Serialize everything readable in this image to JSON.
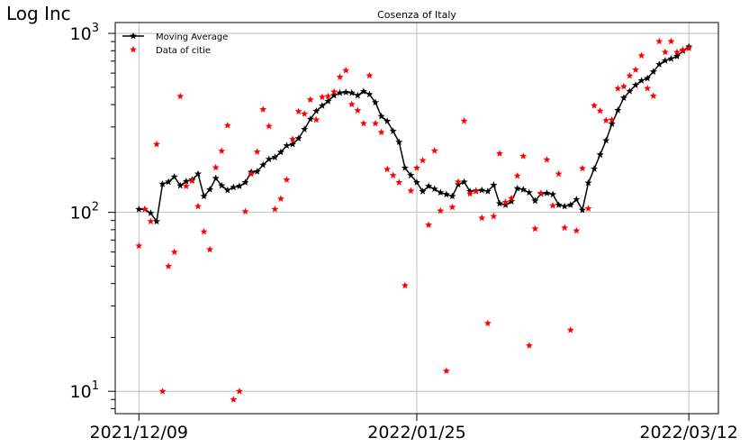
{
  "chart_data": {
    "type": "line",
    "title": "Cosenza of Italy",
    "ylabel": "Log Inc",
    "xlabel": "",
    "yscale": "log",
    "ylim": [
      7.5,
      1150
    ],
    "xlim": [
      "2021-12-05",
      "2022-03-17"
    ],
    "x_ticks": [
      "2021/12/09",
      "2022/01/25",
      "2022/03/12"
    ],
    "y_ticks": [
      "10^1",
      "10^2",
      "10^3"
    ],
    "grid": true,
    "legend_position": "top-left",
    "colors": {
      "moving_average": "#000000",
      "data": "#ff0000"
    },
    "series": [
      {
        "name": "Moving Average",
        "style": "line-star",
        "x": [
          "2021-12-09",
          "2021-12-10",
          "2021-12-11",
          "2021-12-12",
          "2021-12-13",
          "2021-12-14",
          "2021-12-15",
          "2021-12-16",
          "2021-12-17",
          "2021-12-18",
          "2021-12-19",
          "2021-12-20",
          "2021-12-21",
          "2021-12-22",
          "2021-12-23",
          "2021-12-24",
          "2021-12-25",
          "2021-12-26",
          "2021-12-27",
          "2021-12-28",
          "2021-12-29",
          "2021-12-30",
          "2021-12-31",
          "2022-01-01",
          "2022-01-02",
          "2022-01-03",
          "2022-01-04",
          "2022-01-05",
          "2022-01-06",
          "2022-01-07",
          "2022-01-08",
          "2022-01-09",
          "2022-01-10",
          "2022-01-11",
          "2022-01-12",
          "2022-01-13",
          "2022-01-14",
          "2022-01-15",
          "2022-01-16",
          "2022-01-17",
          "2022-01-18",
          "2022-01-19",
          "2022-01-20",
          "2022-01-21",
          "2022-01-22",
          "2022-01-23",
          "2022-01-24",
          "2022-01-25",
          "2022-01-26",
          "2022-01-27",
          "2022-01-28",
          "2022-01-29",
          "2022-01-30",
          "2022-01-31",
          "2022-02-01",
          "2022-02-02",
          "2022-02-03",
          "2022-02-04",
          "2022-02-05",
          "2022-02-06",
          "2022-02-07",
          "2022-02-08",
          "2022-02-09",
          "2022-02-10",
          "2022-02-11",
          "2022-02-12",
          "2022-02-13",
          "2022-02-14",
          "2022-02-15",
          "2022-02-16",
          "2022-02-17",
          "2022-02-18",
          "2022-02-19",
          "2022-02-20",
          "2022-02-21",
          "2022-02-22",
          "2022-02-23",
          "2022-02-24",
          "2022-02-25",
          "2022-02-26",
          "2022-02-27",
          "2022-02-28",
          "2022-03-01",
          "2022-03-02",
          "2022-03-03",
          "2022-03-04",
          "2022-03-05",
          "2022-03-06",
          "2022-03-07",
          "2022-03-08",
          "2022-03-09",
          "2022-03-10",
          "2022-03-11",
          "2022-03-12"
        ],
        "values": [
          104,
          104,
          99,
          89,
          144,
          148,
          158,
          141,
          149,
          152,
          164,
          123,
          134,
          155,
          141,
          133,
          138,
          140,
          147,
          168,
          169,
          184,
          198,
          203,
          217,
          236,
          240,
          259,
          291,
          332,
          368,
          394,
          418,
          450,
          465,
          469,
          465,
          450,
          474,
          456,
          411,
          344,
          323,
          284,
          247,
          177,
          161,
          147,
          131,
          140,
          135,
          129,
          126,
          123,
          143,
          148,
          131,
          132,
          133,
          131,
          142,
          112,
          110,
          115,
          136,
          134,
          129,
          116,
          127,
          128,
          126,
          110,
          108,
          110,
          118,
          103,
          146,
          175,
          210,
          252,
          312,
          372,
          436,
          475,
          514,
          545,
          561,
          611,
          671,
          705,
          721,
          745,
          798,
          843
        ]
      },
      {
        "name": "Data of citie",
        "style": "markers",
        "x": [
          "2021-12-09",
          "2021-12-10",
          "2021-12-11",
          "2021-12-12",
          "2021-12-13",
          "2021-12-14",
          "2021-12-15",
          "2021-12-16",
          "2021-12-17",
          "2021-12-18",
          "2021-12-19",
          "2021-12-20",
          "2021-12-21",
          "2021-12-22",
          "2021-12-23",
          "2021-12-24",
          "2021-12-25",
          "2021-12-26",
          "2021-12-27",
          "2021-12-28",
          "2021-12-29",
          "2021-12-30",
          "2021-12-31",
          "2022-01-01",
          "2022-01-02",
          "2022-01-03",
          "2022-01-04",
          "2022-01-05",
          "2022-01-06",
          "2022-01-07",
          "2022-01-08",
          "2022-01-09",
          "2022-01-10",
          "2022-01-11",
          "2022-01-12",
          "2022-01-13",
          "2022-01-14",
          "2022-01-15",
          "2022-01-16",
          "2022-01-17",
          "2022-01-18",
          "2022-01-19",
          "2022-01-20",
          "2022-01-21",
          "2022-01-22",
          "2022-01-23",
          "2022-01-24",
          "2022-01-25",
          "2022-01-26",
          "2022-01-27",
          "2022-01-28",
          "2022-01-29",
          "2022-01-30",
          "2022-01-31",
          "2022-02-01",
          "2022-02-02",
          "2022-02-03",
          "2022-02-04",
          "2022-02-05",
          "2022-02-06",
          "2022-02-07",
          "2022-02-08",
          "2022-02-09",
          "2022-02-10",
          "2022-02-11",
          "2022-02-12",
          "2022-02-13",
          "2022-02-14",
          "2022-02-15",
          "2022-02-16",
          "2022-02-17",
          "2022-02-18",
          "2022-02-19",
          "2022-02-20",
          "2022-02-21",
          "2022-02-22",
          "2022-02-23",
          "2022-02-24",
          "2022-02-25",
          "2022-02-26",
          "2022-02-27",
          "2022-02-28",
          "2022-03-01",
          "2022-03-02",
          "2022-03-03",
          "2022-03-04",
          "2022-03-05",
          "2022-03-06",
          "2022-03-07",
          "2022-03-08",
          "2022-03-09",
          "2022-03-10",
          "2022-03-11",
          "2022-03-12"
        ],
        "values": [
          65,
          104,
          89,
          240,
          10,
          50,
          60,
          445,
          140,
          150,
          108,
          78,
          62,
          178,
          220,
          306,
          9,
          10,
          101,
          164,
          218,
          376,
          303,
          104,
          119,
          152,
          256,
          366,
          355,
          426,
          329,
          441,
          445,
          471,
          570,
          621,
          401,
          371,
          314,
          581,
          314,
          280,
          174,
          161,
          147,
          39,
          132,
          177,
          195,
          85,
          221,
          102,
          13,
          107,
          148,
          324,
          127,
          131,
          93,
          24,
          95,
          213,
          114,
          120,
          160,
          206,
          18,
          81,
          128,
          197,
          109,
          164,
          82,
          22,
          79,
          176,
          105,
          395,
          369,
          326,
          329,
          492,
          505,
          580,
          626,
          751,
          493,
          447,
          902,
          786,
          902,
          785,
          810,
          825
        ]
      }
    ]
  }
}
